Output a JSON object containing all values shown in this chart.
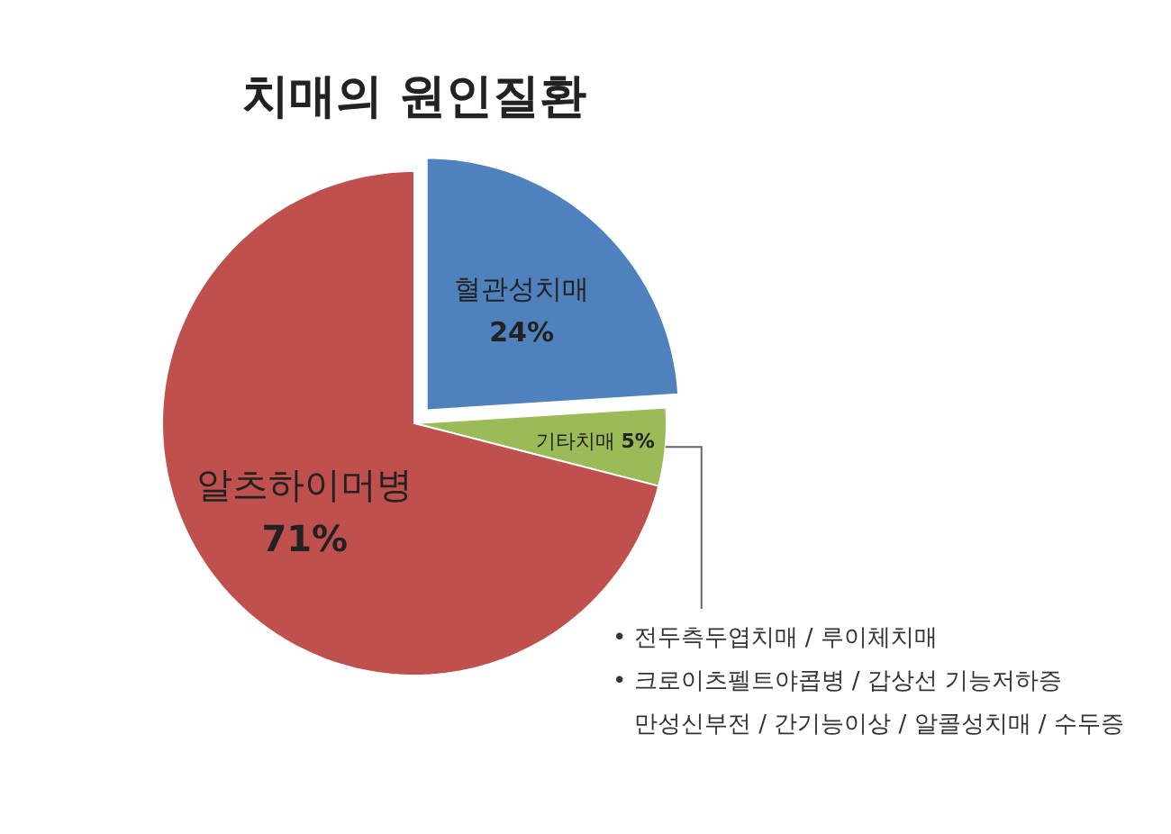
{
  "chart_data": {
    "type": "pie",
    "title": "치매의 원인질환",
    "categories": [
      "혈관성치매",
      "기타치매",
      "알츠하이머병"
    ],
    "values": [
      24,
      5,
      71
    ],
    "colors": [
      "#4f81bd",
      "#9bbb59",
      "#c0504d"
    ],
    "value_labels": [
      "24%",
      "5%",
      "71%"
    ],
    "annotations": [
      "• 전두측두엽치매 / 루이체치매",
      "• 크로이츠펠트야콥병 / 갑상선  기능저하증",
      "만성신부전 / 간기능이상 / 알콜성치매 / 수두증"
    ]
  }
}
